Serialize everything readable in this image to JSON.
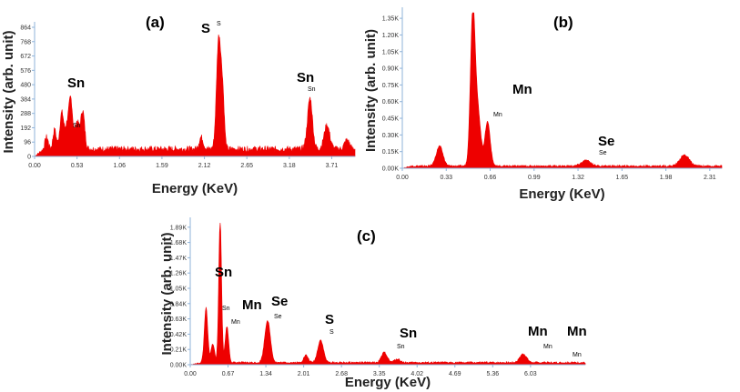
{
  "colors": {
    "spectrum": "#ee0000",
    "axis": "#8fb3d9",
    "text": "#222222"
  },
  "chart_data": [
    {
      "type": "area",
      "panel_label": "(a)",
      "xlabel": "Energy (KeV)",
      "ylabel": "Intensity (arb. unit)",
      "xlim": [
        0,
        4.0
      ],
      "ylim": [
        0,
        864
      ],
      "x_ticks": [
        "0.00",
        "0.53",
        "1.06",
        "1.59",
        "2.12",
        "2.65",
        "3.18",
        "3.71"
      ],
      "y_ticks": [
        "0",
        "96",
        "192",
        "288",
        "384",
        "480",
        "576",
        "672",
        "768",
        "864"
      ],
      "baseline": 50,
      "peaks": [
        {
          "x": 0.15,
          "h": 80,
          "w": 0.02
        },
        {
          "x": 0.25,
          "h": 130,
          "w": 0.02
        },
        {
          "x": 0.34,
          "h": 245,
          "w": 0.025
        },
        {
          "x": 0.4,
          "h": 120,
          "w": 0.02
        },
        {
          "x": 0.45,
          "h": 340,
          "w": 0.025
        },
        {
          "x": 0.53,
          "h": 180,
          "w": 0.025
        },
        {
          "x": 0.6,
          "h": 255,
          "w": 0.025
        },
        {
          "x": 2.08,
          "h": 80,
          "w": 0.025
        },
        {
          "x": 2.3,
          "h": 750,
          "w": 0.028
        },
        {
          "x": 2.35,
          "h": 300,
          "w": 0.02
        },
        {
          "x": 3.4,
          "h": 25,
          "w": 0.03
        },
        {
          "x": 3.44,
          "h": 330,
          "w": 0.03
        },
        {
          "x": 3.65,
          "h": 160,
          "w": 0.035
        },
        {
          "x": 3.9,
          "h": 60,
          "w": 0.03
        }
      ],
      "annotations": [
        {
          "big": "Sn",
          "small": "Sn",
          "x": 0.53
        },
        {
          "big": "S",
          "small": "S",
          "x": 2.3
        },
        {
          "big": "Sn",
          "small": "Sn",
          "x": 3.44
        }
      ]
    },
    {
      "type": "area",
      "panel_label": "(b)",
      "xlabel": "Energy (KeV)",
      "ylabel": "Intensity (arb. unit)",
      "xlim": [
        0,
        2.4
      ],
      "ylim": [
        0,
        1400
      ],
      "x_ticks": [
        "0.00",
        "0.33",
        "0.66",
        "0.99",
        "1.32",
        "1.65",
        "1.98",
        "2.31"
      ],
      "y_ticks": [
        "0.00K",
        "0.15K",
        "0.30K",
        "0.45K",
        "0.60K",
        "0.75K",
        "0.90K",
        "1.05K",
        "1.20K",
        "1.35K"
      ],
      "baseline": 20,
      "peaks": [
        {
          "x": 0.28,
          "h": 180,
          "w": 0.025
        },
        {
          "x": 0.53,
          "h": 1400,
          "w": 0.018
        },
        {
          "x": 0.57,
          "h": 450,
          "w": 0.02
        },
        {
          "x": 0.64,
          "h": 400,
          "w": 0.02
        },
        {
          "x": 1.38,
          "h": 50,
          "w": 0.035
        },
        {
          "x": 2.12,
          "h": 100,
          "w": 0.035
        }
      ],
      "annotations": [
        {
          "big": "Mn",
          "small": "Mn",
          "x": 0.64
        },
        {
          "big": "Se",
          "small": "Se",
          "x": 1.38
        }
      ]
    },
    {
      "type": "area",
      "panel_label": "(c)",
      "xlabel": "Energy (KeV)",
      "ylabel": "Intensity (arb. unit)",
      "xlim": [
        0,
        7.0
      ],
      "ylim": [
        0,
        1950
      ],
      "x_ticks": [
        "0.00",
        "0.67",
        "1.34",
        "2.01",
        "2.68",
        "3.35",
        "4.02",
        "4.69",
        "5.36",
        "6.03"
      ],
      "y_ticks": [
        "0.00K",
        "0.21K",
        "0.42K",
        "0.63K",
        "0.84K",
        "1.05K",
        "1.26K",
        "1.47K",
        "1.68K",
        "1.89K"
      ],
      "baseline": 30,
      "peaks": [
        {
          "x": 0.28,
          "h": 750,
          "w": 0.03
        },
        {
          "x": 0.4,
          "h": 260,
          "w": 0.03
        },
        {
          "x": 0.53,
          "h": 1950,
          "w": 0.025
        },
        {
          "x": 0.65,
          "h": 500,
          "w": 0.03
        },
        {
          "x": 1.37,
          "h": 580,
          "w": 0.05
        },
        {
          "x": 2.05,
          "h": 100,
          "w": 0.04
        },
        {
          "x": 2.31,
          "h": 310,
          "w": 0.05
        },
        {
          "x": 3.44,
          "h": 140,
          "w": 0.05
        },
        {
          "x": 3.67,
          "h": 50,
          "w": 0.05
        },
        {
          "x": 5.9,
          "h": 120,
          "w": 0.06
        }
      ],
      "annotations": [
        {
          "big": "Sn",
          "small": "Sn",
          "x": 0.53
        },
        {
          "big": "Mn",
          "small": "Mn",
          "x": 0.65
        },
        {
          "big": "Se",
          "small": "Se",
          "x": 1.37
        },
        {
          "big": "S",
          "small": "S",
          "x": 2.31
        },
        {
          "big": "Sn",
          "small": "Sn",
          "x": 3.44
        },
        {
          "big": "Mn",
          "small": "Mn",
          "x": 5.9
        },
        {
          "big": "Mn",
          "small": "Mn",
          "x": 6.5
        }
      ]
    }
  ]
}
